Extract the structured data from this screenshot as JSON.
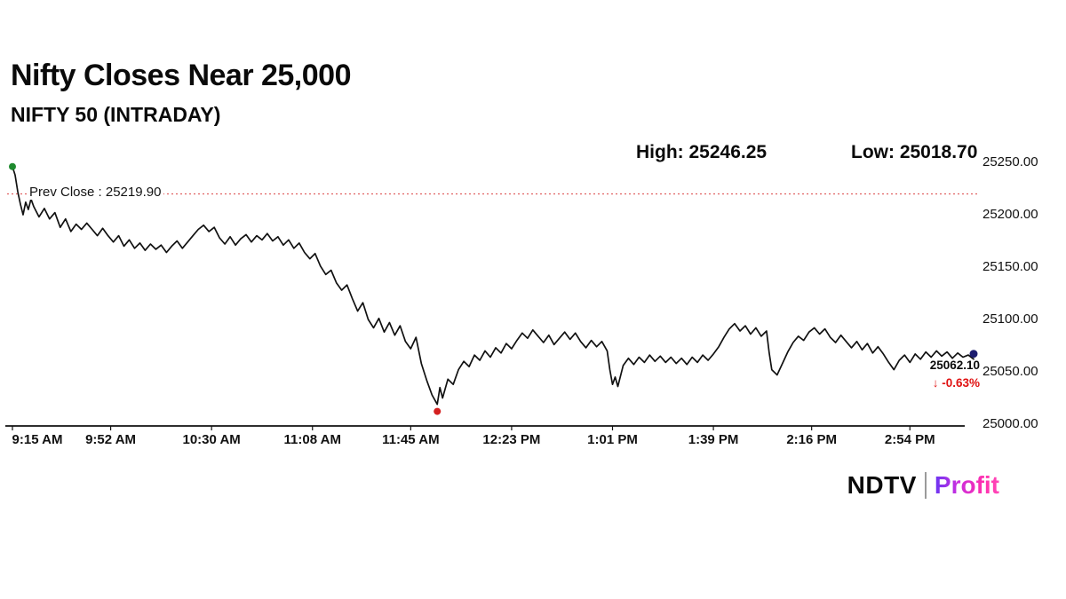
{
  "header": {
    "title": "Nifty Closes Near 25,000",
    "subtitle": "NIFTY 50 (INTRADAY)"
  },
  "stats": {
    "high_label": "High: 25246.25",
    "low_label": "Low: 25018.70"
  },
  "prev_close_label": "Prev Close : 25219.90",
  "last": {
    "price": "25062.10",
    "change": "↓ -0.63%"
  },
  "logo": {
    "ndtv": "NDTV",
    "separator": "|",
    "profit": "Profit"
  },
  "colors": {
    "line": "#111111",
    "prev_close_line": "#e06060",
    "axis": "#111111",
    "marker_start": "#1e8a2e",
    "marker_low": "#d42020",
    "marker_end": "#1c1c6e",
    "change_red": "#e01212"
  },
  "chart_data": {
    "type": "line",
    "title": "NIFTY 50 (INTRADAY)",
    "series_name": "NIFTY 50",
    "high": 25246.25,
    "low": 25018.7,
    "close": 25062.1,
    "prev_close": 25219.9,
    "change_pct": -0.63,
    "ylim": [
      25000,
      25250
    ],
    "y_ticks": [
      25250,
      25200,
      25150,
      25100,
      25050,
      25000
    ],
    "y_tick_labels": [
      "25250.00",
      "25200.00",
      "25150.00",
      "25100.00",
      "25050.00",
      "25000.00"
    ],
    "x_ticks_minutes": [
      0,
      37,
      75,
      113,
      150,
      188,
      226,
      264,
      301,
      338
    ],
    "x_tick_labels": [
      "9:15 AM",
      "9:52 AM",
      "10:30 AM",
      "11:08 AM",
      "11:45 AM",
      "12:23 PM",
      "1:01 PM",
      "1:39 PM",
      "2:16 PM",
      "2:54 PM"
    ],
    "points": [
      [
        0,
        25246
      ],
      [
        1,
        25238
      ],
      [
        2,
        25222
      ],
      [
        3,
        25210
      ],
      [
        4,
        25200
      ],
      [
        5,
        25212
      ],
      [
        6,
        25205
      ],
      [
        7,
        25215
      ],
      [
        8,
        25208
      ],
      [
        10,
        25198
      ],
      [
        12,
        25206
      ],
      [
        14,
        25196
      ],
      [
        16,
        25202
      ],
      [
        18,
        25188
      ],
      [
        20,
        25196
      ],
      [
        22,
        25184
      ],
      [
        24,
        25191
      ],
      [
        26,
        25186
      ],
      [
        28,
        25192
      ],
      [
        30,
        25186
      ],
      [
        32,
        25180
      ],
      [
        34,
        25187
      ],
      [
        36,
        25180
      ],
      [
        38,
        25174
      ],
      [
        40,
        25180
      ],
      [
        42,
        25170
      ],
      [
        44,
        25176
      ],
      [
        46,
        25168
      ],
      [
        48,
        25173
      ],
      [
        50,
        25166
      ],
      [
        52,
        25172
      ],
      [
        54,
        25167
      ],
      [
        56,
        25171
      ],
      [
        58,
        25164
      ],
      [
        60,
        25170
      ],
      [
        62,
        25175
      ],
      [
        64,
        25168
      ],
      [
        66,
        25174
      ],
      [
        68,
        25180
      ],
      [
        70,
        25186
      ],
      [
        72,
        25190
      ],
      [
        74,
        25184
      ],
      [
        76,
        25188
      ],
      [
        78,
        25178
      ],
      [
        80,
        25172
      ],
      [
        82,
        25179
      ],
      [
        84,
        25171
      ],
      [
        86,
        25177
      ],
      [
        88,
        25181
      ],
      [
        90,
        25174
      ],
      [
        92,
        25180
      ],
      [
        94,
        25176
      ],
      [
        96,
        25182
      ],
      [
        98,
        25175
      ],
      [
        100,
        25179
      ],
      [
        102,
        25171
      ],
      [
        104,
        25176
      ],
      [
        106,
        25168
      ],
      [
        108,
        25173
      ],
      [
        110,
        25164
      ],
      [
        112,
        25158
      ],
      [
        114,
        25163
      ],
      [
        116,
        25151
      ],
      [
        118,
        25143
      ],
      [
        120,
        25147
      ],
      [
        122,
        25135
      ],
      [
        124,
        25128
      ],
      [
        126,
        25133
      ],
      [
        128,
        25120
      ],
      [
        130,
        25108
      ],
      [
        132,
        25116
      ],
      [
        134,
        25100
      ],
      [
        136,
        25092
      ],
      [
        138,
        25101
      ],
      [
        140,
        25088
      ],
      [
        142,
        25097
      ],
      [
        144,
        25085
      ],
      [
        146,
        25094
      ],
      [
        148,
        25079
      ],
      [
        150,
        25072
      ],
      [
        152,
        25083
      ],
      [
        154,
        25058
      ],
      [
        156,
        25042
      ],
      [
        158,
        25028
      ],
      [
        160,
        25019
      ],
      [
        161,
        25035
      ],
      [
        162,
        25025
      ],
      [
        164,
        25043
      ],
      [
        166,
        25038
      ],
      [
        168,
        25052
      ],
      [
        170,
        25060
      ],
      [
        172,
        25055
      ],
      [
        174,
        25066
      ],
      [
        176,
        25061
      ],
      [
        178,
        25070
      ],
      [
        180,
        25064
      ],
      [
        182,
        25073
      ],
      [
        184,
        25068
      ],
      [
        186,
        25077
      ],
      [
        188,
        25072
      ],
      [
        190,
        25080
      ],
      [
        192,
        25087
      ],
      [
        194,
        25082
      ],
      [
        196,
        25090
      ],
      [
        198,
        25084
      ],
      [
        200,
        25078
      ],
      [
        202,
        25085
      ],
      [
        204,
        25076
      ],
      [
        206,
        25082
      ],
      [
        208,
        25088
      ],
      [
        210,
        25081
      ],
      [
        212,
        25087
      ],
      [
        214,
        25079
      ],
      [
        216,
        25073
      ],
      [
        218,
        25080
      ],
      [
        220,
        25074
      ],
      [
        222,
        25079
      ],
      [
        224,
        25070
      ],
      [
        225,
        25052
      ],
      [
        226,
        25038
      ],
      [
        227,
        25045
      ],
      [
        228,
        25036
      ],
      [
        230,
        25056
      ],
      [
        232,
        25063
      ],
      [
        234,
        25057
      ],
      [
        236,
        25064
      ],
      [
        238,
        25059
      ],
      [
        240,
        25066
      ],
      [
        242,
        25060
      ],
      [
        244,
        25065
      ],
      [
        246,
        25059
      ],
      [
        248,
        25064
      ],
      [
        250,
        25058
      ],
      [
        252,
        25063
      ],
      [
        254,
        25057
      ],
      [
        256,
        25064
      ],
      [
        258,
        25059
      ],
      [
        260,
        25066
      ],
      [
        262,
        25061
      ],
      [
        264,
        25067
      ],
      [
        266,
        25074
      ],
      [
        268,
        25083
      ],
      [
        270,
        25091
      ],
      [
        272,
        25096
      ],
      [
        274,
        25089
      ],
      [
        276,
        25094
      ],
      [
        278,
        25086
      ],
      [
        280,
        25092
      ],
      [
        282,
        25084
      ],
      [
        284,
        25089
      ],
      [
        285,
        25068
      ],
      [
        286,
        25052
      ],
      [
        288,
        25047
      ],
      [
        290,
        25058
      ],
      [
        292,
        25069
      ],
      [
        294,
        25078
      ],
      [
        296,
        25084
      ],
      [
        298,
        25080
      ],
      [
        300,
        25088
      ],
      [
        302,
        25092
      ],
      [
        304,
        25086
      ],
      [
        306,
        25091
      ],
      [
        308,
        25083
      ],
      [
        310,
        25078
      ],
      [
        312,
        25085
      ],
      [
        314,
        25079
      ],
      [
        316,
        25073
      ],
      [
        318,
        25079
      ],
      [
        320,
        25071
      ],
      [
        322,
        25077
      ],
      [
        324,
        25068
      ],
      [
        326,
        25074
      ],
      [
        328,
        25067
      ],
      [
        330,
        25059
      ],
      [
        332,
        25052
      ],
      [
        334,
        25061
      ],
      [
        336,
        25066
      ],
      [
        338,
        25059
      ],
      [
        340,
        25067
      ],
      [
        342,
        25062
      ],
      [
        344,
        25069
      ],
      [
        346,
        25064
      ],
      [
        348,
        25070
      ],
      [
        350,
        25065
      ],
      [
        352,
        25069
      ],
      [
        354,
        25063
      ],
      [
        356,
        25068
      ],
      [
        358,
        25064
      ],
      [
        360,
        25066
      ],
      [
        362,
        25062.1
      ]
    ]
  }
}
